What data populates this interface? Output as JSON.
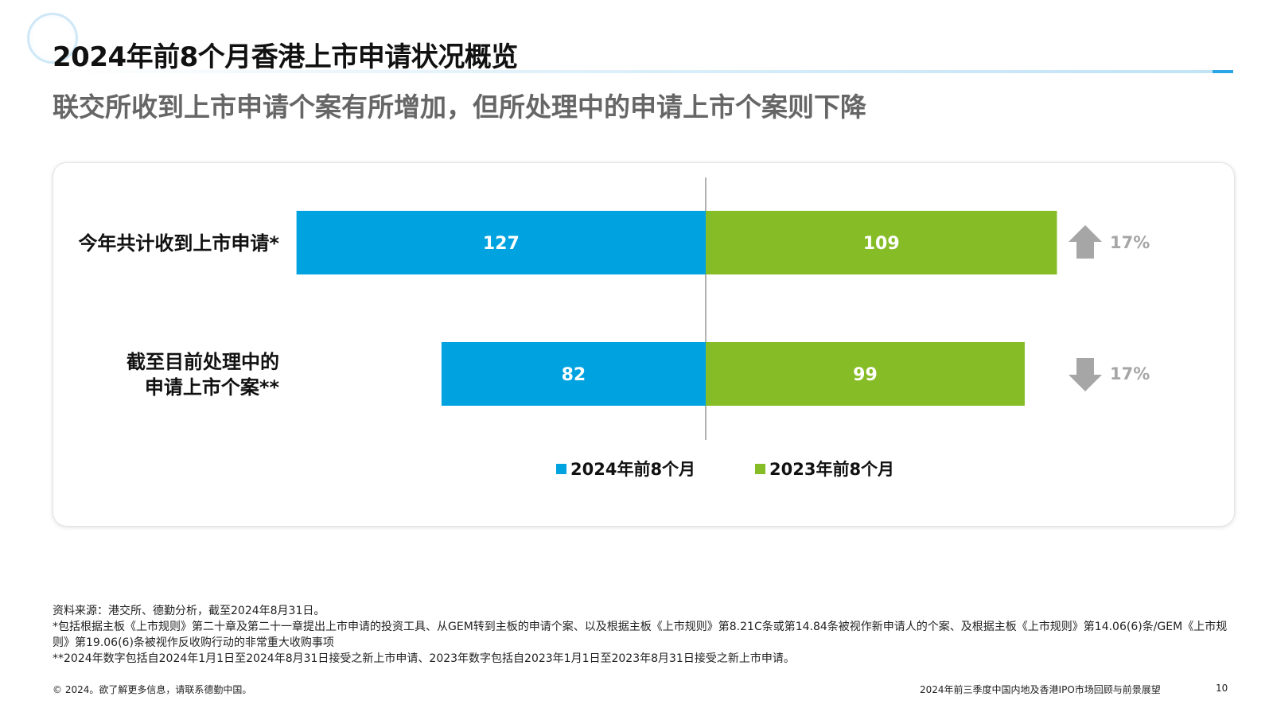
{
  "header": {
    "title": "2024年前8个月香港上市申请状况概览",
    "subtitle": "联交所收到上市申请个案有所增加，但所处理中的申请上市个案则下降"
  },
  "chart_data": {
    "type": "bar",
    "orientation": "horizontal",
    "categories": [
      [
        "今年共计收到上市申请*"
      ],
      [
        "截至目前处理中的",
        "申请上市个案**"
      ]
    ],
    "series": [
      {
        "name": "2024年前8个月",
        "values": [
          127,
          82
        ],
        "labels": [
          "127",
          "82"
        ],
        "color": "#00a3e0"
      },
      {
        "name": "2023年前8个月",
        "values": [
          109,
          99
        ],
        "labels": [
          "109",
          "99"
        ],
        "color": "#86bc25"
      }
    ],
    "changes": [
      {
        "direction": "up",
        "label": "17%"
      },
      {
        "direction": "down",
        "label": "17%"
      }
    ],
    "legend_position": "bottom-center",
    "grid": false
  },
  "colors": {
    "accent_blue": "#00a3e0",
    "accent_green": "#86bc25",
    "arrow_gray": "#a6a6a6"
  },
  "notes": {
    "source": "资料来源：港交所、德勤分析，截至2024年8月31日。",
    "note1": "*包括根据主板《上市规则》第二十章及第二十一章提出上市申请的投资工具、从GEM转到主板的申请个案、以及根据主板《上市规则》第8.21C条或第14.84条被视作新申请人的个案、及根据主板《上市规则》第14.06(6)条/GEM《上市规则》第19.06(6)条被视作反收购行动的非常重大收购事项",
    "note2": "**2024年数字包括自2024年1月1日至2024年8月31日接受之新上市申请、2023年数字包括自2023年1月1日至2023年8月31日接受之新上市申请。"
  },
  "footer": {
    "copyright": "© 2024。欲了解更多信息，请联系德勤中国。",
    "report_title": "2024年前三季度中国内地及香港IPO市场回顾与前景展望",
    "page_number": "10"
  }
}
